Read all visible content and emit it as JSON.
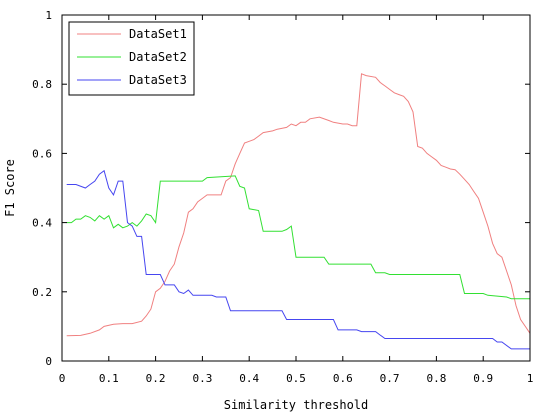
{
  "chart_data": {
    "type": "line",
    "title": "",
    "xlabel": "Similarity threshold",
    "ylabel": "F1 Score",
    "xlim": [
      0,
      1
    ],
    "ylim": [
      0,
      1
    ],
    "x_ticks": [
      "0",
      "0.1",
      "0.2",
      "0.3",
      "0.4",
      "0.5",
      "0.6",
      "0.7",
      "0.8",
      "0.9",
      "1"
    ],
    "y_ticks": [
      "0",
      "0.2",
      "0.4",
      "0.6",
      "0.8",
      "1"
    ],
    "grid": false,
    "legend_position": "top-left",
    "series": [
      {
        "name": "DataSet1",
        "color": "#f08080",
        "points": [
          [
            0.01,
            0.073
          ],
          [
            0.04,
            0.074
          ],
          [
            0.06,
            0.08
          ],
          [
            0.08,
            0.09
          ],
          [
            0.09,
            0.1
          ],
          [
            0.11,
            0.106
          ],
          [
            0.13,
            0.108
          ],
          [
            0.15,
            0.108
          ],
          [
            0.17,
            0.115
          ],
          [
            0.18,
            0.13
          ],
          [
            0.19,
            0.15
          ],
          [
            0.2,
            0.2
          ],
          [
            0.21,
            0.21
          ],
          [
            0.22,
            0.23
          ],
          [
            0.23,
            0.26
          ],
          [
            0.24,
            0.28
          ],
          [
            0.25,
            0.33
          ],
          [
            0.26,
            0.37
          ],
          [
            0.27,
            0.43
          ],
          [
            0.28,
            0.44
          ],
          [
            0.29,
            0.46
          ],
          [
            0.3,
            0.47
          ],
          [
            0.31,
            0.48
          ],
          [
            0.33,
            0.48
          ],
          [
            0.34,
            0.48
          ],
          [
            0.35,
            0.52
          ],
          [
            0.36,
            0.53
          ],
          [
            0.37,
            0.57
          ],
          [
            0.38,
            0.6
          ],
          [
            0.39,
            0.63
          ],
          [
            0.4,
            0.635
          ],
          [
            0.41,
            0.64
          ],
          [
            0.42,
            0.65
          ],
          [
            0.43,
            0.66
          ],
          [
            0.45,
            0.665
          ],
          [
            0.46,
            0.67
          ],
          [
            0.48,
            0.675
          ],
          [
            0.49,
            0.685
          ],
          [
            0.5,
            0.68
          ],
          [
            0.51,
            0.69
          ],
          [
            0.52,
            0.69
          ],
          [
            0.53,
            0.7
          ],
          [
            0.55,
            0.705
          ],
          [
            0.57,
            0.695
          ],
          [
            0.58,
            0.69
          ],
          [
            0.6,
            0.685
          ],
          [
            0.61,
            0.685
          ],
          [
            0.62,
            0.68
          ],
          [
            0.63,
            0.68
          ],
          [
            0.64,
            0.83
          ],
          [
            0.65,
            0.825
          ],
          [
            0.67,
            0.82
          ],
          [
            0.68,
            0.805
          ],
          [
            0.69,
            0.795
          ],
          [
            0.7,
            0.785
          ],
          [
            0.71,
            0.775
          ],
          [
            0.72,
            0.77
          ],
          [
            0.73,
            0.765
          ],
          [
            0.74,
            0.75
          ],
          [
            0.75,
            0.72
          ],
          [
            0.76,
            0.62
          ],
          [
            0.77,
            0.615
          ],
          [
            0.78,
            0.6
          ],
          [
            0.79,
            0.59
          ],
          [
            0.8,
            0.58
          ],
          [
            0.81,
            0.565
          ],
          [
            0.82,
            0.56
          ],
          [
            0.83,
            0.555
          ],
          [
            0.84,
            0.553
          ],
          [
            0.85,
            0.54
          ],
          [
            0.86,
            0.525
          ],
          [
            0.87,
            0.51
          ],
          [
            0.88,
            0.49
          ],
          [
            0.89,
            0.47
          ],
          [
            0.9,
            0.43
          ],
          [
            0.91,
            0.39
          ],
          [
            0.92,
            0.34
          ],
          [
            0.93,
            0.31
          ],
          [
            0.94,
            0.3
          ],
          [
            0.95,
            0.26
          ],
          [
            0.96,
            0.22
          ],
          [
            0.97,
            0.16
          ],
          [
            0.98,
            0.12
          ],
          [
            0.99,
            0.1
          ],
          [
            1.0,
            0.08
          ]
        ]
      },
      {
        "name": "DataSet2",
        "color": "#32e032",
        "points": [
          [
            0.01,
            0.4
          ],
          [
            0.02,
            0.4
          ],
          [
            0.03,
            0.41
          ],
          [
            0.04,
            0.41
          ],
          [
            0.05,
            0.42
          ],
          [
            0.06,
            0.415
          ],
          [
            0.07,
            0.405
          ],
          [
            0.08,
            0.42
          ],
          [
            0.09,
            0.41
          ],
          [
            0.1,
            0.42
          ],
          [
            0.11,
            0.385
          ],
          [
            0.12,
            0.395
          ],
          [
            0.13,
            0.385
          ],
          [
            0.14,
            0.39
          ],
          [
            0.15,
            0.4
          ],
          [
            0.16,
            0.39
          ],
          [
            0.17,
            0.405
          ],
          [
            0.18,
            0.425
          ],
          [
            0.19,
            0.42
          ],
          [
            0.2,
            0.4
          ],
          [
            0.21,
            0.52
          ],
          [
            0.22,
            0.52
          ],
          [
            0.3,
            0.52
          ],
          [
            0.31,
            0.53
          ],
          [
            0.37,
            0.535
          ],
          [
            0.38,
            0.505
          ],
          [
            0.39,
            0.5
          ],
          [
            0.4,
            0.44
          ],
          [
            0.42,
            0.435
          ],
          [
            0.43,
            0.375
          ],
          [
            0.47,
            0.375
          ],
          [
            0.48,
            0.38
          ],
          [
            0.49,
            0.39
          ],
          [
            0.5,
            0.3
          ],
          [
            0.56,
            0.3
          ],
          [
            0.57,
            0.28
          ],
          [
            0.66,
            0.28
          ],
          [
            0.67,
            0.255
          ],
          [
            0.69,
            0.255
          ],
          [
            0.7,
            0.25
          ],
          [
            0.75,
            0.25
          ],
          [
            0.76,
            0.25
          ],
          [
            0.85,
            0.25
          ],
          [
            0.86,
            0.195
          ],
          [
            0.9,
            0.195
          ],
          [
            0.91,
            0.19
          ],
          [
            0.95,
            0.185
          ],
          [
            0.96,
            0.18
          ],
          [
            1.0,
            0.18
          ]
        ]
      },
      {
        "name": "DataSet3",
        "color": "#4646f0",
        "points": [
          [
            0.01,
            0.51
          ],
          [
            0.03,
            0.51
          ],
          [
            0.05,
            0.5
          ],
          [
            0.06,
            0.51
          ],
          [
            0.07,
            0.52
          ],
          [
            0.08,
            0.54
          ],
          [
            0.09,
            0.55
          ],
          [
            0.1,
            0.5
          ],
          [
            0.11,
            0.48
          ],
          [
            0.12,
            0.52
          ],
          [
            0.13,
            0.52
          ],
          [
            0.14,
            0.4
          ],
          [
            0.15,
            0.39
          ],
          [
            0.16,
            0.36
          ],
          [
            0.17,
            0.36
          ],
          [
            0.18,
            0.25
          ],
          [
            0.19,
            0.25
          ],
          [
            0.21,
            0.25
          ],
          [
            0.22,
            0.22
          ],
          [
            0.24,
            0.22
          ],
          [
            0.25,
            0.2
          ],
          [
            0.26,
            0.195
          ],
          [
            0.27,
            0.205
          ],
          [
            0.28,
            0.19
          ],
          [
            0.3,
            0.19
          ],
          [
            0.32,
            0.19
          ],
          [
            0.33,
            0.185
          ],
          [
            0.35,
            0.185
          ],
          [
            0.36,
            0.145
          ],
          [
            0.47,
            0.145
          ],
          [
            0.48,
            0.12
          ],
          [
            0.58,
            0.12
          ],
          [
            0.59,
            0.09
          ],
          [
            0.63,
            0.09
          ],
          [
            0.64,
            0.085
          ],
          [
            0.67,
            0.085
          ],
          [
            0.68,
            0.075
          ],
          [
            0.69,
            0.065
          ],
          [
            0.92,
            0.065
          ],
          [
            0.93,
            0.055
          ],
          [
            0.94,
            0.055
          ],
          [
            0.96,
            0.035
          ],
          [
            1.0,
            0.035
          ]
        ]
      }
    ]
  }
}
